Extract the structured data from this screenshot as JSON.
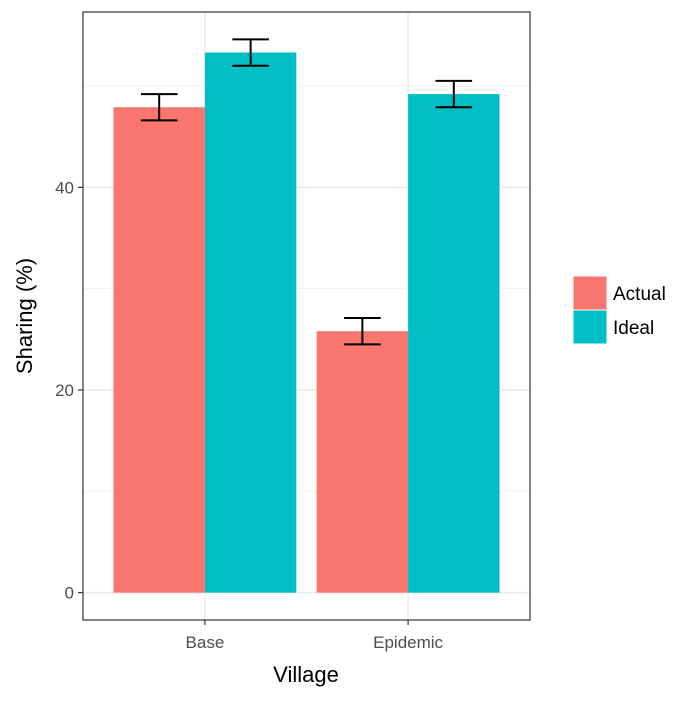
{
  "chart_data": {
    "type": "bar",
    "title": "",
    "xlabel": "Village",
    "ylabel": "Sharing (%)",
    "categories": [
      "Base",
      "Epidemic"
    ],
    "ylim": [
      -2.7,
      57.3
    ],
    "yticks": [
      0,
      20,
      40
    ],
    "grid": true,
    "legend_position": "right",
    "series": [
      {
        "name": "Actual",
        "color": "#F8766D",
        "values": [
          47.9,
          25.8
        ],
        "err_low": [
          46.6,
          24.5
        ],
        "err_high": [
          49.2,
          27.1
        ]
      },
      {
        "name": "Ideal",
        "color": "#00BFC4",
        "values": [
          53.3,
          49.2
        ],
        "err_low": [
          52.0,
          47.9
        ],
        "err_high": [
          54.6,
          50.5
        ]
      }
    ]
  }
}
